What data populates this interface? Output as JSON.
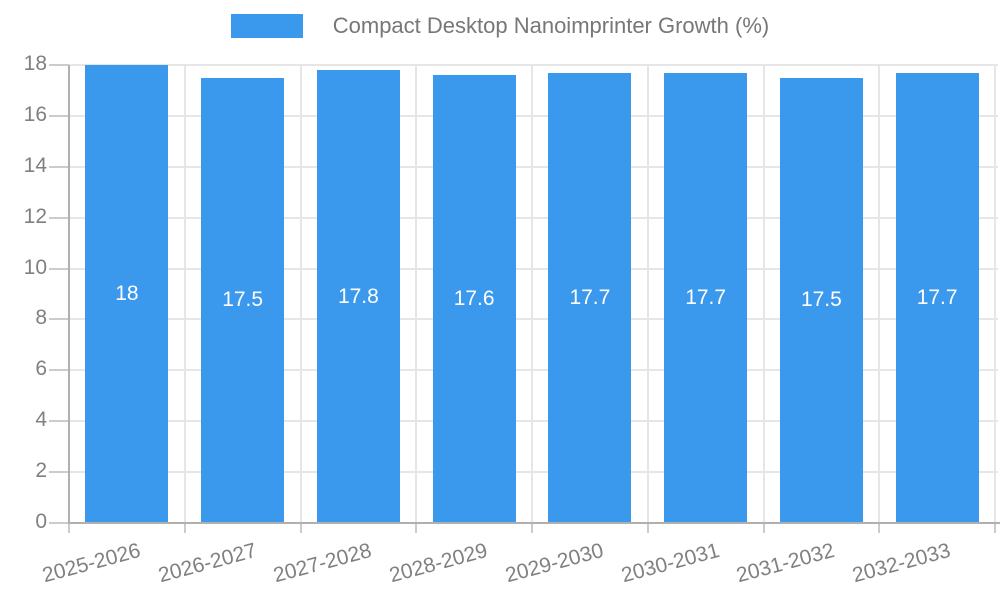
{
  "chart_data": {
    "type": "bar",
    "title": "Compact Desktop Nanoimprinter Growth (%)",
    "legend": {
      "label": "Compact Desktop Nanoimprinter Growth (%)",
      "position": "top"
    },
    "categories": [
      "2025-2026",
      "2026-2027",
      "2027-2028",
      "2028-2029",
      "2029-2030",
      "2030-2031",
      "2031-2032",
      "2032-2033"
    ],
    "values": [
      18,
      17.5,
      17.8,
      17.6,
      17.7,
      17.7,
      17.5,
      17.7
    ],
    "value_labels": [
      "18",
      "17.5",
      "17.8",
      "17.6",
      "17.7",
      "17.7",
      "17.5",
      "17.7"
    ],
    "xlabel": "",
    "ylabel": "",
    "ylim": [
      0,
      18
    ],
    "yticks": [
      0,
      2,
      4,
      6,
      8,
      10,
      12,
      14,
      16,
      18
    ],
    "grid": "horizontal-and-vertical",
    "x_label_rotation_deg": -15,
    "colors": {
      "bar": "#3b99ed",
      "bar_label": "#ffffff",
      "axis_line": "#b0b0b0",
      "grid_line": "#e6e6e6",
      "tick_line": "#cccccc",
      "axis_text": "#808080",
      "legend_text": "#777777"
    }
  }
}
